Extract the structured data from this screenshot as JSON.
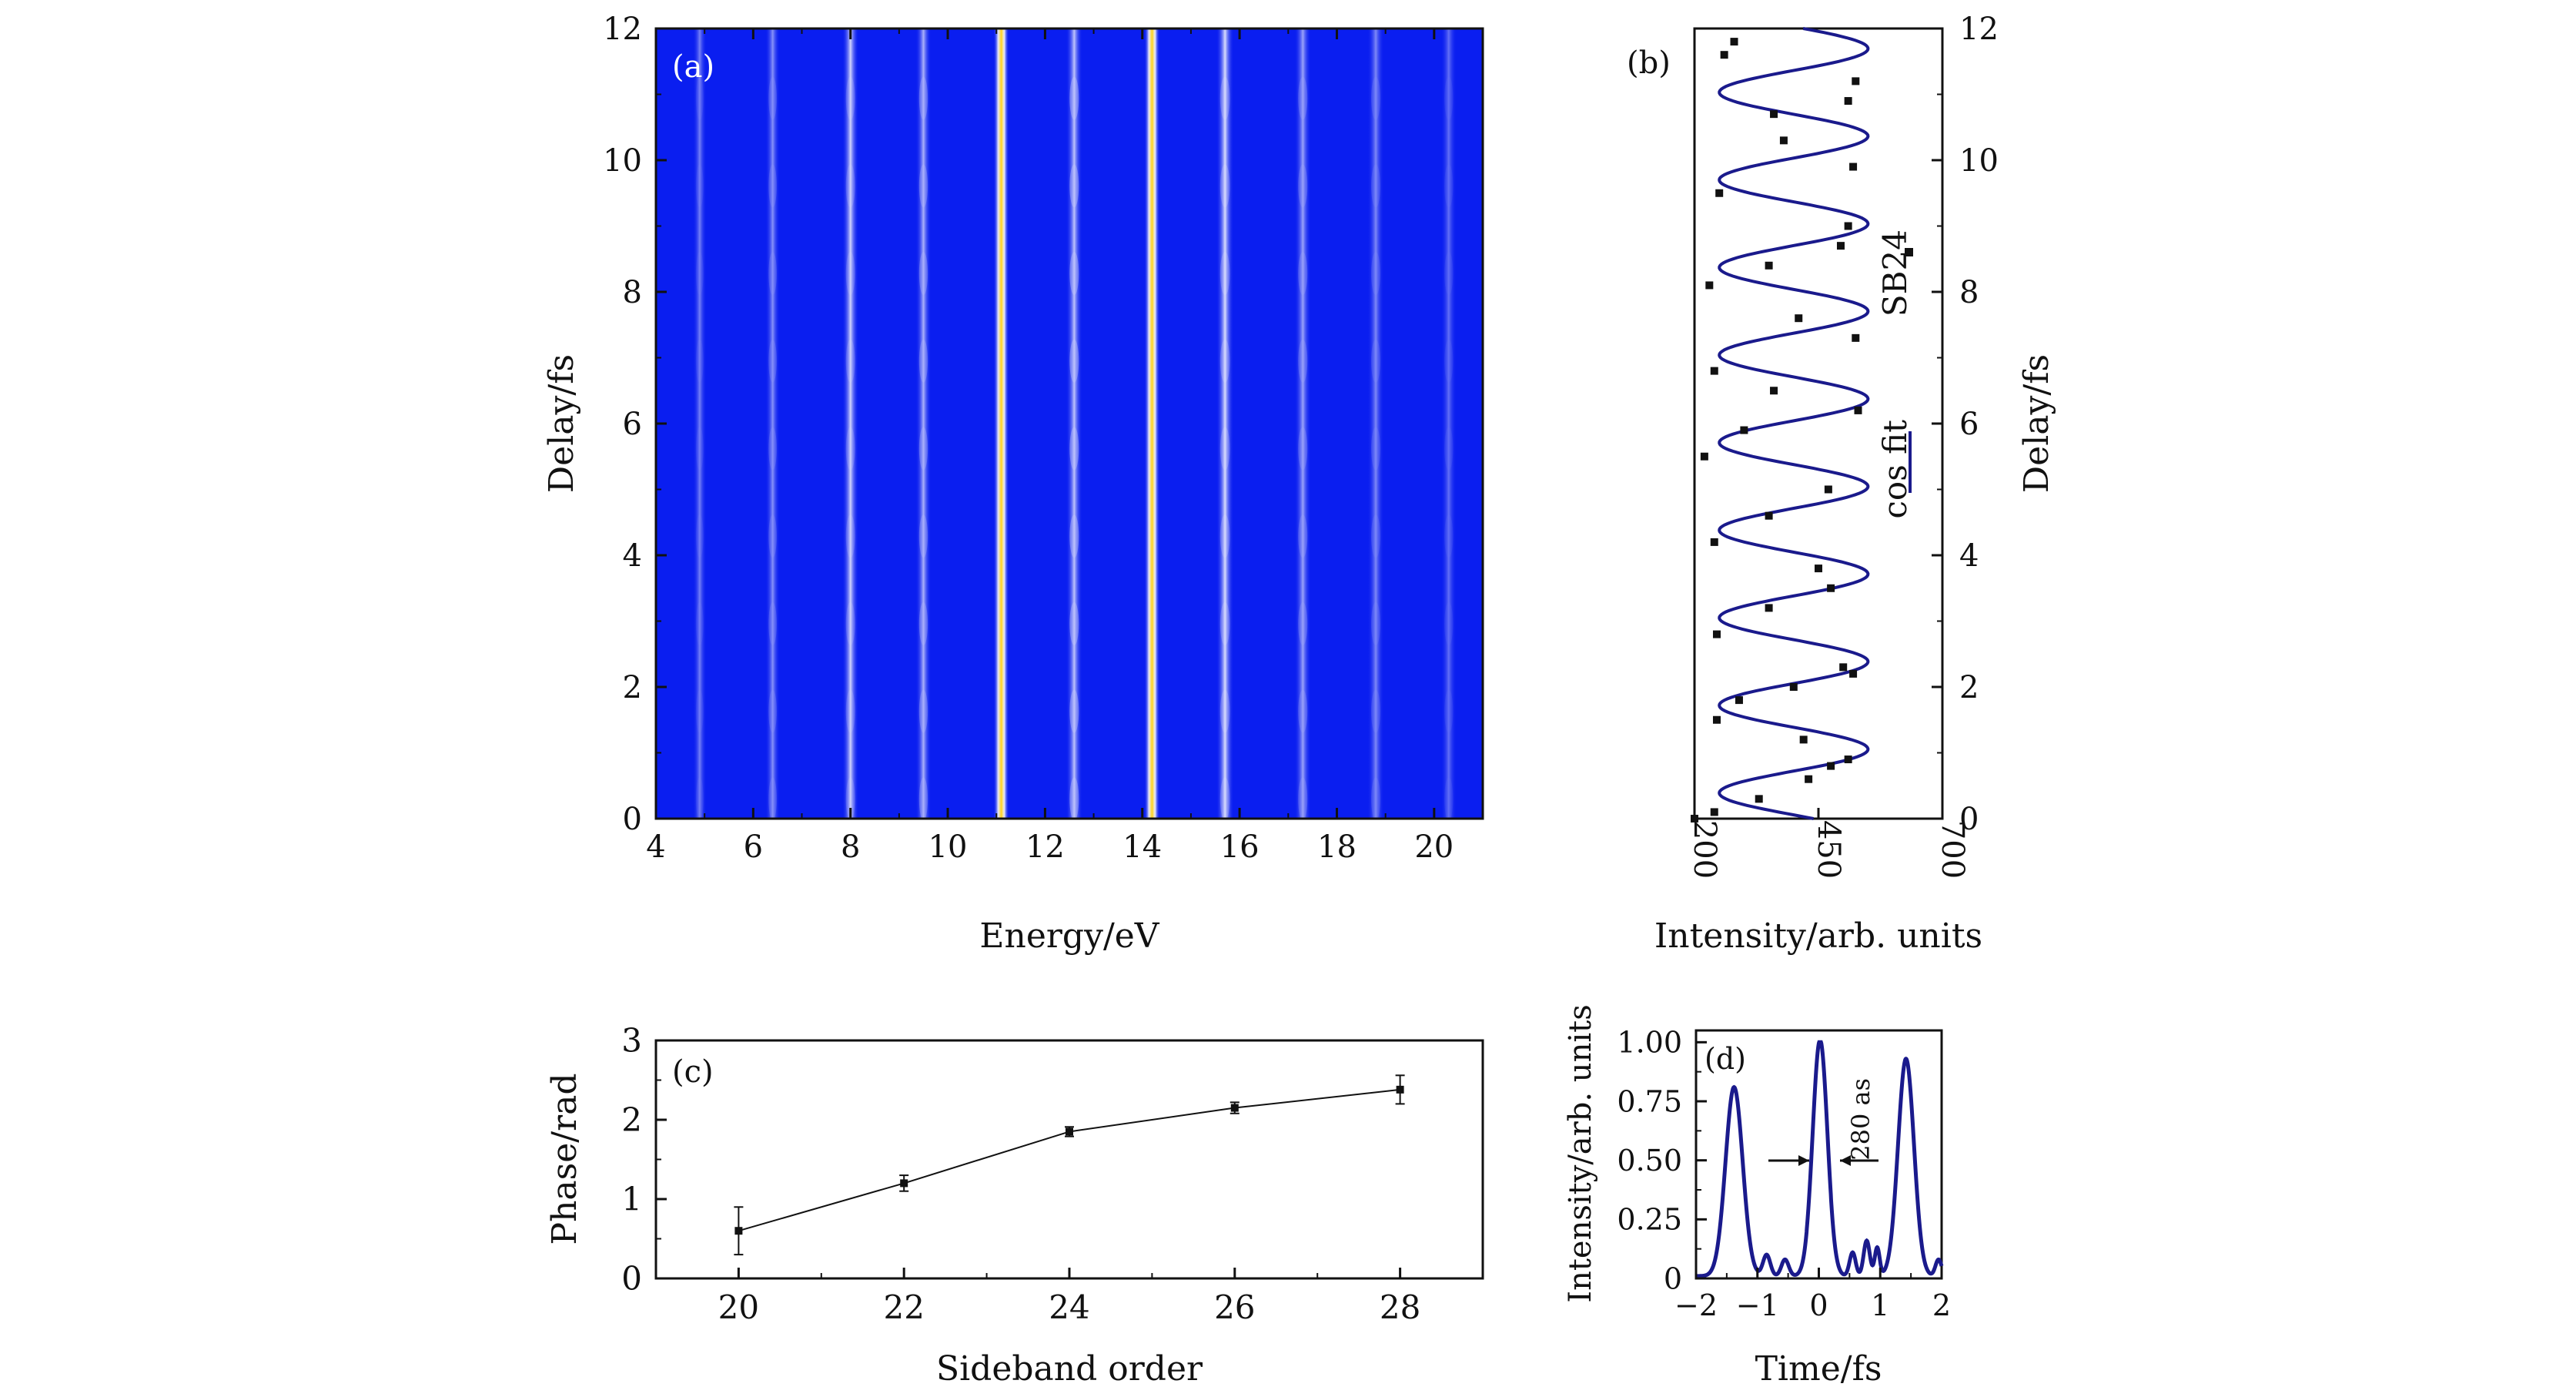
{
  "colors": {
    "axis": "#111111",
    "fit": "#1a1a8c",
    "marker": "#111111",
    "map_bg": "#0a1ef0"
  },
  "chart_data": [
    {
      "id": "a",
      "type": "heatmap",
      "panel_label": "(a)",
      "xlabel": "Energy/eV",
      "ylabel": "Delay/fs",
      "xlim": [
        4,
        21
      ],
      "ylim": [
        0,
        12
      ],
      "xticks": [
        4,
        6,
        8,
        10,
        12,
        14,
        16,
        18,
        20
      ],
      "yticks": [
        0,
        2,
        4,
        6,
        8,
        10,
        12
      ],
      "harmonic_lines": [
        {
          "energy": 4.9,
          "intensity": 0.25,
          "mod": 0.3,
          "width": 0.14
        },
        {
          "energy": 6.4,
          "intensity": 0.35,
          "mod": 0.6,
          "width": 0.15
        },
        {
          "energy": 8.0,
          "intensity": 0.75,
          "mod": 0.35,
          "width": 0.17
        },
        {
          "energy": 9.5,
          "intensity": 0.55,
          "mod": 0.7,
          "width": 0.16
        },
        {
          "energy": 11.1,
          "intensity": 1.0,
          "mod": 0.1,
          "width": 0.16
        },
        {
          "energy": 12.6,
          "intensity": 0.65,
          "mod": 0.8,
          "width": 0.17
        },
        {
          "energy": 14.2,
          "intensity": 1.0,
          "mod": 0.1,
          "width": 0.16
        },
        {
          "energy": 15.7,
          "intensity": 0.8,
          "mod": 0.45,
          "width": 0.18
        },
        {
          "energy": 17.3,
          "intensity": 0.45,
          "mod": 0.6,
          "width": 0.17
        },
        {
          "energy": 18.8,
          "intensity": 0.3,
          "mod": 0.5,
          "width": 0.17
        },
        {
          "energy": 20.3,
          "intensity": 0.15,
          "mod": 0.4,
          "width": 0.16
        }
      ]
    },
    {
      "id": "b",
      "type": "scatter",
      "panel_label": "(b)",
      "xlabel": "Intensity/arb. units",
      "ylabel": "Delay/fs",
      "xlim": [
        200,
        700
      ],
      "ylim": [
        0,
        12
      ],
      "xticks": [
        200,
        450,
        700
      ],
      "yticks": [
        0,
        2,
        4,
        6,
        8,
        10,
        12
      ],
      "legend": [
        {
          "name": "SB24",
          "kind": "marker"
        },
        {
          "name": "cos fit",
          "kind": "line"
        }
      ],
      "fit": {
        "center": 400,
        "amplitude": 150,
        "period_fs": 1.33,
        "phase": 1.3
      },
      "points": [
        {
          "delay": 0.0,
          "intensity": 200
        },
        {
          "delay": 0.1,
          "intensity": 240
        },
        {
          "delay": 0.3,
          "intensity": 330
        },
        {
          "delay": 0.6,
          "intensity": 430
        },
        {
          "delay": 0.8,
          "intensity": 475
        },
        {
          "delay": 0.9,
          "intensity": 510
        },
        {
          "delay": 1.2,
          "intensity": 420
        },
        {
          "delay": 1.5,
          "intensity": 245
        },
        {
          "delay": 1.8,
          "intensity": 290
        },
        {
          "delay": 2.0,
          "intensity": 400
        },
        {
          "delay": 2.2,
          "intensity": 520
        },
        {
          "delay": 2.3,
          "intensity": 500
        },
        {
          "delay": 2.8,
          "intensity": 245
        },
        {
          "delay": 3.2,
          "intensity": 350
        },
        {
          "delay": 3.5,
          "intensity": 475
        },
        {
          "delay": 3.8,
          "intensity": 450
        },
        {
          "delay": 4.2,
          "intensity": 240
        },
        {
          "delay": 4.6,
          "intensity": 350
        },
        {
          "delay": 5.0,
          "intensity": 470
        },
        {
          "delay": 5.5,
          "intensity": 220
        },
        {
          "delay": 5.9,
          "intensity": 300
        },
        {
          "delay": 6.2,
          "intensity": 530
        },
        {
          "delay": 6.5,
          "intensity": 360
        },
        {
          "delay": 6.8,
          "intensity": 240
        },
        {
          "delay": 7.3,
          "intensity": 525
        },
        {
          "delay": 7.6,
          "intensity": 410
        },
        {
          "delay": 8.1,
          "intensity": 230
        },
        {
          "delay": 8.4,
          "intensity": 350
        },
        {
          "delay": 8.7,
          "intensity": 495
        },
        {
          "delay": 9.0,
          "intensity": 510
        },
        {
          "delay": 9.5,
          "intensity": 250
        },
        {
          "delay": 9.9,
          "intensity": 520
        },
        {
          "delay": 10.3,
          "intensity": 380
        },
        {
          "delay": 10.7,
          "intensity": 360
        },
        {
          "delay": 10.9,
          "intensity": 510
        },
        {
          "delay": 11.2,
          "intensity": 525
        },
        {
          "delay": 11.6,
          "intensity": 260
        },
        {
          "delay": 11.8,
          "intensity": 280
        }
      ]
    },
    {
      "id": "c",
      "type": "line",
      "panel_label": "(c)",
      "xlabel": "Sideband order",
      "ylabel": "Phase/rad",
      "xlim": [
        19,
        29
      ],
      "ylim": [
        0,
        3
      ],
      "xticks": [
        20,
        22,
        24,
        26,
        28
      ],
      "yticks": [
        0,
        1,
        2,
        3
      ],
      "x": [
        20,
        22,
        24,
        26,
        28
      ],
      "values": [
        0.6,
        1.2,
        1.85,
        2.15,
        2.38
      ],
      "errors": [
        0.3,
        0.1,
        0.06,
        0.07,
        0.18
      ]
    },
    {
      "id": "d",
      "type": "line",
      "panel_label": "(d)",
      "xlabel": "Time/fs",
      "ylabel": "Intensity/arb. units",
      "xlim": [
        -2,
        2
      ],
      "ylim": [
        0,
        1.05
      ],
      "xticks": [
        -2,
        -1,
        0,
        1,
        2
      ],
      "xtick_labels": [
        "−2",
        "−1",
        "0",
        "1",
        "2"
      ],
      "yticks": [
        0,
        0.25,
        0.5,
        0.75,
        1.0
      ],
      "ytick_labels": [
        "0",
        "0.25",
        "0.50",
        "0.75",
        "1.00"
      ],
      "annotation": "280 as",
      "pulses": [
        {
          "t": -1.38,
          "amp": 0.8,
          "sigma": 0.14
        },
        {
          "t": 0.02,
          "amp": 1.0,
          "sigma": 0.12
        },
        {
          "t": 1.42,
          "amp": 0.92,
          "sigma": 0.13
        }
      ],
      "satellites": [
        {
          "t": -0.85,
          "amp": 0.09,
          "sigma": 0.06
        },
        {
          "t": -0.55,
          "amp": 0.07,
          "sigma": 0.06
        },
        {
          "t": 0.55,
          "amp": 0.1,
          "sigma": 0.05
        },
        {
          "t": 0.78,
          "amp": 0.15,
          "sigma": 0.05
        },
        {
          "t": 0.95,
          "amp": 0.12,
          "sigma": 0.04
        },
        {
          "t": 1.95,
          "amp": 0.07,
          "sigma": 0.05
        }
      ]
    }
  ]
}
